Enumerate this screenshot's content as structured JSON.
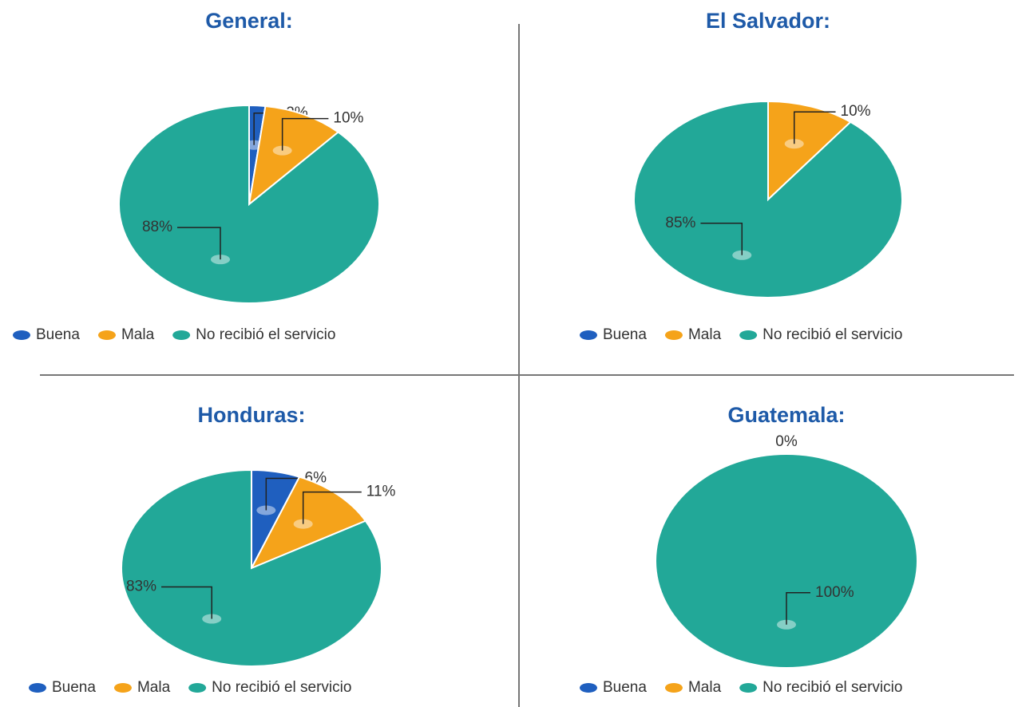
{
  "chart_data": [
    {
      "type": "pie",
      "title": "General:",
      "labels": [
        "Buena",
        "Mala",
        "No recibió el servicio"
      ],
      "colors": [
        "#1f5fbf",
        "#f5a31a",
        "#22a898"
      ],
      "values": [
        2,
        10,
        88
      ],
      "value_labels": [
        "2%",
        "10%",
        "88%"
      ]
    },
    {
      "type": "pie",
      "title": "El Salvador:",
      "labels": [
        "Buena",
        "Mala",
        "No recibió el servicio"
      ],
      "colors": [
        "#1f5fbf",
        "#f5a31a",
        "#22a898"
      ],
      "values": [
        0,
        10,
        85
      ],
      "value_labels": [
        null,
        "10%",
        "85%"
      ]
    },
    {
      "type": "pie",
      "title": "Honduras:",
      "labels": [
        "Buena",
        "Mala",
        "No recibió el servicio"
      ],
      "colors": [
        "#1f5fbf",
        "#f5a31a",
        "#22a898"
      ],
      "values": [
        6,
        11,
        83
      ],
      "value_labels": [
        "6%",
        "11%",
        "83%"
      ]
    },
    {
      "type": "pie",
      "title": "Guatemala:",
      "labels": [
        "Buena",
        "Mala",
        "No recibió el servicio"
      ],
      "colors": [
        "#1f5fbf",
        "#f5a31a",
        "#22a898"
      ],
      "values": [
        0,
        0,
        100
      ],
      "value_labels": [
        "0%",
        null,
        "100%"
      ]
    }
  ]
}
